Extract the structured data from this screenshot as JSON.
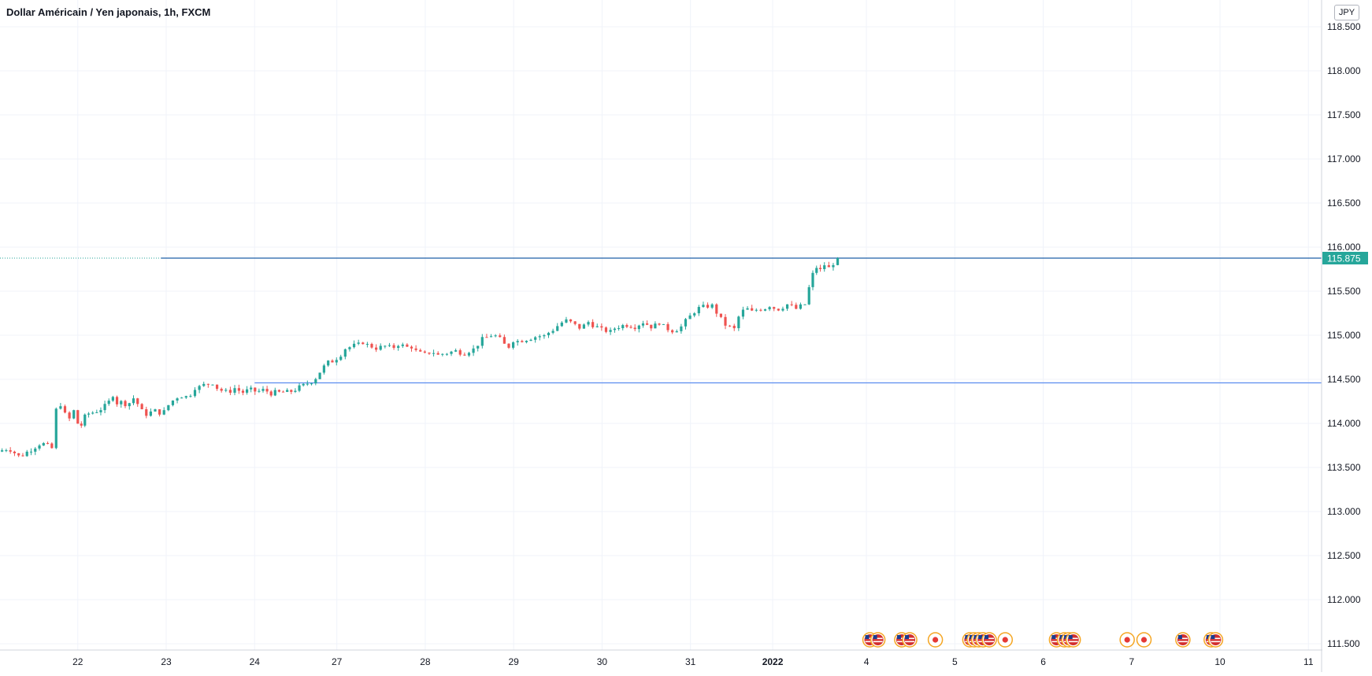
{
  "header": {
    "title": "Dollar Américain / Yen japonais, 1h, FXCM",
    "currency": "JPY"
  },
  "colors": {
    "up": "#26a69a",
    "down": "#ef5350",
    "grid": "#f0f3fa",
    "axis_text": "#131722",
    "hline": "#2962ff",
    "price_label_bg": "#26a69a",
    "border": "#d1d4dc"
  },
  "chart_data": {
    "type": "candlestick",
    "title": "Dollar Américain / Yen japonais, 1h, FXCM",
    "symbol": "USD/JPY",
    "interval": "1h",
    "source": "FXCM",
    "currency": "JPY",
    "ylim": [
      111.3,
      118.7
    ],
    "y_ticks": [
      "118.500",
      "118.000",
      "117.500",
      "117.000",
      "116.500",
      "116.000",
      "115.500",
      "115.000",
      "114.500",
      "114.000",
      "113.500",
      "113.000",
      "112.500",
      "112.000",
      "111.500"
    ],
    "x_ticks": [
      {
        "label": "22",
        "pos": 0.5
      },
      {
        "label": "23",
        "pos": 1.5
      },
      {
        "label": "24",
        "pos": 2.5
      },
      {
        "label": "27",
        "pos": 3.43
      },
      {
        "label": "28",
        "pos": 4.43
      },
      {
        "label": "29",
        "pos": 5.43
      },
      {
        "label": "30",
        "pos": 6.43
      },
      {
        "label": "31",
        "pos": 7.43
      },
      {
        "label": "2022",
        "pos": 8.36,
        "bold": true
      },
      {
        "label": "4",
        "pos": 9.42
      },
      {
        "label": "5",
        "pos": 10.42
      },
      {
        "label": "6",
        "pos": 11.42
      },
      {
        "label": "7",
        "pos": 12.42
      },
      {
        "label": "10",
        "pos": 13.42
      },
      {
        "label": "11",
        "pos": 14.42
      }
    ],
    "x_range": [
      -0.38,
      14.56
    ],
    "last_price": 115.875,
    "last_price_label": "115.875",
    "horizontal_lines": [
      {
        "price": 115.875,
        "from": 1.44,
        "style": "solid",
        "extend_left_dotted": true
      },
      {
        "price": 114.46,
        "from": 2.5,
        "style": "solid"
      }
    ],
    "segments": [
      {
        "x0": -0.38,
        "x1": 0.23,
        "path": [
          113.68,
          113.72,
          113.62,
          113.7,
          113.78,
          113.72
        ]
      },
      {
        "x0": 0.23,
        "x1": 0.48,
        "path": [
          113.72,
          114.15,
          114.22,
          114.1,
          114.05,
          114.15
        ]
      },
      {
        "x0": 0.48,
        "x1": 0.6,
        "path": [
          114.15,
          114.0,
          113.98,
          114.1
        ]
      },
      {
        "x0": 0.6,
        "x1": 0.92,
        "path": [
          114.1,
          114.12,
          114.15,
          114.2,
          114.3
        ]
      },
      {
        "x0": 0.92,
        "x1": 1.2,
        "path": [
          114.3,
          114.22,
          114.25,
          114.2,
          114.3,
          114.22
        ]
      },
      {
        "x0": 1.2,
        "x1": 1.5,
        "path": [
          114.22,
          114.12,
          114.1,
          114.15,
          114.12,
          114.15
        ]
      },
      {
        "x0": 1.5,
        "x1": 1.85,
        "path": [
          114.15,
          114.25,
          114.32,
          114.3,
          114.38
        ]
      },
      {
        "x0": 1.85,
        "x1": 2.05,
        "path": [
          114.38,
          114.42,
          114.45,
          114.44
        ]
      },
      {
        "x0": 2.05,
        "x1": 2.3,
        "path": [
          114.44,
          114.38,
          114.35,
          114.4
        ]
      },
      {
        "x0": 2.3,
        "x1": 2.8,
        "path": [
          114.4,
          114.35,
          114.38,
          114.36,
          114.38,
          114.34,
          114.36
        ]
      },
      {
        "x0": 2.8,
        "x1": 3.12,
        "path": [
          114.36,
          114.35,
          114.4,
          114.45
        ]
      },
      {
        "x0": 3.12,
        "x1": 3.45,
        "path": [
          114.45,
          114.5,
          114.62,
          114.7,
          114.72
        ]
      },
      {
        "x0": 3.45,
        "x1": 3.75,
        "path": [
          114.72,
          114.85,
          114.88,
          114.9
        ]
      },
      {
        "x0": 3.75,
        "x1": 4.0,
        "path": [
          114.9,
          114.88,
          114.85,
          114.88
        ]
      },
      {
        "x0": 4.0,
        "x1": 4.3,
        "path": [
          114.88,
          114.85,
          114.9,
          114.87,
          114.85
        ]
      },
      {
        "x0": 4.3,
        "x1": 4.6,
        "path": [
          114.85,
          114.8,
          114.78,
          114.82,
          114.78
        ]
      },
      {
        "x0": 4.6,
        "x1": 5.0,
        "path": [
          114.78,
          114.8,
          114.82,
          114.8,
          114.85
        ]
      },
      {
        "x0": 5.0,
        "x1": 5.3,
        "path": [
          114.85,
          114.95,
          115.0,
          114.98
        ]
      },
      {
        "x0": 5.3,
        "x1": 5.45,
        "path": [
          114.98,
          114.85,
          114.92
        ]
      },
      {
        "x0": 5.45,
        "x1": 5.8,
        "path": [
          114.92,
          114.95,
          114.98,
          115.0
        ]
      },
      {
        "x0": 5.8,
        "x1": 6.05,
        "path": [
          115.0,
          115.05,
          115.12,
          115.18
        ]
      },
      {
        "x0": 6.05,
        "x1": 6.3,
        "path": [
          115.18,
          115.12,
          115.08,
          115.15
        ]
      },
      {
        "x0": 6.3,
        "x1": 6.55,
        "path": [
          115.15,
          115.1,
          115.05,
          115.06
        ]
      },
      {
        "x0": 6.55,
        "x1": 7.1,
        "path": [
          115.06,
          115.1,
          115.12,
          115.1,
          115.15,
          115.1,
          115.12
        ]
      },
      {
        "x0": 7.1,
        "x1": 7.35,
        "path": [
          115.12,
          115.08,
          115.05,
          115.1
        ]
      },
      {
        "x0": 7.35,
        "x1": 7.7,
        "path": [
          115.1,
          115.2,
          115.3,
          115.32,
          115.35
        ]
      },
      {
        "x0": 7.7,
        "x1": 7.95,
        "path": [
          115.35,
          115.2,
          115.1,
          115.08
        ]
      },
      {
        "x0": 7.95,
        "x1": 8.15,
        "path": [
          115.08,
          115.25,
          115.3,
          115.28
        ]
      },
      {
        "x0": 8.15,
        "x1": 8.35,
        "path": [
          115.28,
          115.3,
          115.32
        ]
      },
      {
        "x0": 8.35,
        "x1": 8.75,
        "path": [
          115.32,
          115.3,
          115.35,
          115.3,
          115.35
        ]
      },
      {
        "x0": 8.75,
        "x1": 8.92,
        "path": [
          115.35,
          115.6,
          115.78,
          115.75
        ]
      },
      {
        "x0": 8.92,
        "x1": 9.12,
        "path": [
          115.75,
          115.8,
          115.76,
          115.82,
          115.875
        ]
      }
    ],
    "candles": [
      {
        "x": 0.05,
        "open": 113.7,
        "close": 113.72,
        "high": 113.75,
        "low": 113.68
      },
      {
        "x": 0.12,
        "open": 113.75,
        "close": 113.6,
        "high": 113.78,
        "low": 113.58
      },
      {
        "x": 0.2,
        "open": 113.7,
        "close": 113.72,
        "high": 113.75,
        "low": 113.66
      },
      {
        "x": 2.2,
        "open": 114.37,
        "close": 114.4,
        "high": 114.42,
        "low": 114.33
      },
      {
        "x": 2.6,
        "open": 114.36,
        "close": 114.34,
        "high": 114.38,
        "low": 114.31
      },
      {
        "x": 2.9,
        "open": 114.35,
        "close": 114.34,
        "high": 114.37,
        "low": 114.32
      }
    ],
    "events": [
      {
        "pos": 9.46,
        "type": "us"
      },
      {
        "pos": 9.55,
        "type": "us"
      },
      {
        "pos": 9.82,
        "type": "us"
      },
      {
        "pos": 9.91,
        "type": "us"
      },
      {
        "pos": 10.2,
        "type": "jp"
      },
      {
        "pos": 10.59,
        "type": "us"
      },
      {
        "pos": 10.64,
        "type": "us"
      },
      {
        "pos": 10.69,
        "type": "us"
      },
      {
        "pos": 10.74,
        "type": "us"
      },
      {
        "pos": 10.81,
        "type": "us"
      },
      {
        "pos": 10.99,
        "type": "jp"
      },
      {
        "pos": 11.57,
        "type": "us"
      },
      {
        "pos": 11.66,
        "type": "us"
      },
      {
        "pos": 11.71,
        "type": "us"
      },
      {
        "pos": 11.76,
        "type": "us"
      },
      {
        "pos": 12.37,
        "type": "jp"
      },
      {
        "pos": 12.56,
        "type": "jp"
      },
      {
        "pos": 13.0,
        "type": "us"
      },
      {
        "pos": 13.32,
        "type": "us"
      },
      {
        "pos": 13.37,
        "type": "us"
      }
    ]
  }
}
